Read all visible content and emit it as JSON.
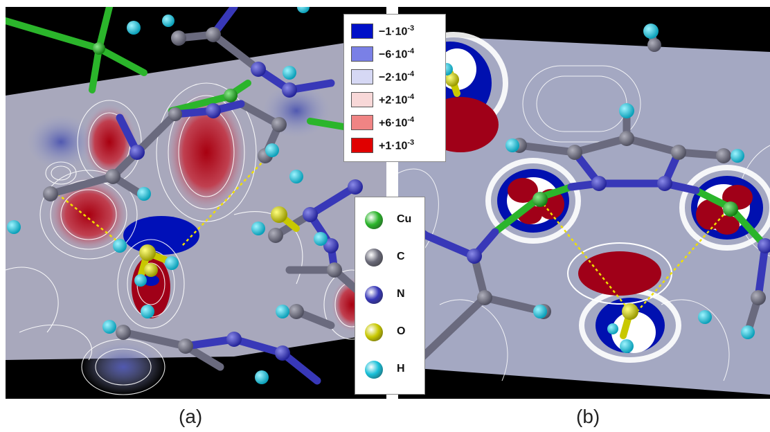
{
  "legend": {
    "scale": [
      {
        "mantissa": "−1·10",
        "exp": "-3",
        "color": "#0010c8"
      },
      {
        "mantissa": "−6·10",
        "exp": "-4",
        "color": "#7a80e6"
      },
      {
        "mantissa": "−2·10",
        "exp": "-4",
        "color": "#d6d8f4"
      },
      {
        "mantissa": "+2·10",
        "exp": "-4",
        "color": "#f8d8d8"
      },
      {
        "mantissa": "+6·10",
        "exp": "-4",
        "color": "#f08484"
      },
      {
        "mantissa": "+1·10",
        "exp": "-3",
        "color": "#e00000"
      }
    ],
    "atoms": [
      {
        "symbol": "Cu",
        "color": "#2bb52b"
      },
      {
        "symbol": "C",
        "color": "#6a6a78"
      },
      {
        "symbol": "N",
        "color": "#3838b8"
      },
      {
        "symbol": "O",
        "color": "#c8c800"
      },
      {
        "symbol": "H",
        "color": "#19c0d8"
      }
    ]
  },
  "captions": {
    "a": "(a)",
    "b": "(b)"
  }
}
